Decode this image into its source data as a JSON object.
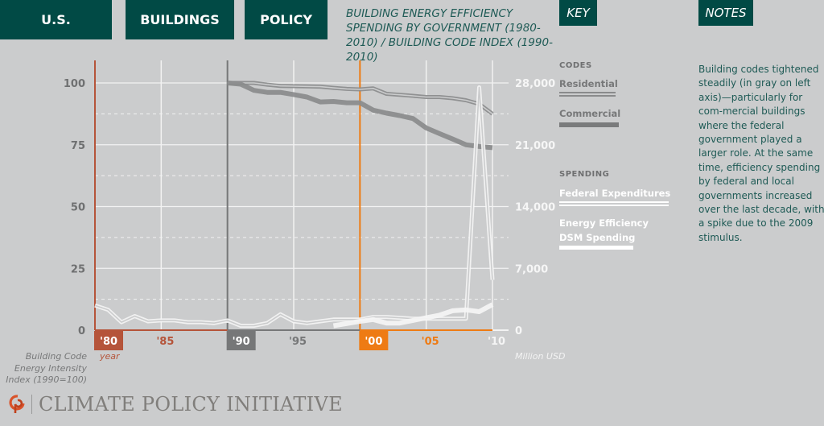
{
  "tabs": {
    "us": "U.S.",
    "buildings": "BUILDINGS",
    "policy": "POLICY",
    "key": "KEY",
    "notes": "NOTES"
  },
  "colors": {
    "tab_bg": "#014a45",
    "background": "#cbcccd",
    "decade_1980": "#b5543a",
    "decade_1990": "#767778",
    "decade_2000": "#ee7b14",
    "codes_gray": "#8a8b8c",
    "spending_white": "#f5f5f5"
  },
  "legend": {
    "codes_heading": "CODES",
    "residential": "Residential",
    "commercial": "Commercial",
    "spending_heading": "SPENDING",
    "federal": "Federal Expenditures",
    "dsm_line1": "Energy Efficiency",
    "dsm_line2": "DSM Spending"
  },
  "notes_text": "Building codes tightened steadily (in gray on left axis)—particularly for com-mercial buildings where the federal government played a larger role. At the same time, efficiency spending by federal and local governments increased over the last decade, with a spike due to the 2009 stimulus.",
  "axis_captions": {
    "left_line1": "Building Code",
    "left_line2": "Energy Intensity",
    "left_line3": "Index (1990=100)",
    "x": "year",
    "right": "Million USD"
  },
  "logo_text": "CLIMATE POLICY INITIATIVE",
  "chart_data": {
    "type": "line",
    "title": "BUILDING ENERGY EFFICIENCY SPENDING BY GOVERNMENT (1980-2010) / BUILDING CODE INDEX (1990-2010)",
    "xlabel": "year",
    "ylabel": "Building Code Energy Intensity Index (1990=100)",
    "y2label": "Million USD",
    "xlim": [
      1980,
      2010
    ],
    "ylim": [
      0,
      100
    ],
    "y2lim": [
      0,
      28000
    ],
    "x_ticks": [
      {
        "value": 1980,
        "label": "'80",
        "highlight": "decade_1980"
      },
      {
        "value": 1985,
        "label": "'85",
        "color": "decade_1980"
      },
      {
        "value": 1990,
        "label": "'90",
        "highlight": "decade_1990"
      },
      {
        "value": 1995,
        "label": "'95",
        "color": "decade_1990"
      },
      {
        "value": 2000,
        "label": "'00",
        "highlight": "decade_2000"
      },
      {
        "value": 2005,
        "label": "'05",
        "color": "decade_2000"
      },
      {
        "value": 2010,
        "label": "'10",
        "color": "spending_white"
      }
    ],
    "y_ticks": [
      0,
      25,
      50,
      75,
      100
    ],
    "y2_ticks": [
      {
        "value": 0,
        "label": "0"
      },
      {
        "value": 7000,
        "label": "7,000"
      },
      {
        "value": 14000,
        "label": "14,000"
      },
      {
        "value": 21000,
        "label": "21,000"
      },
      {
        "value": 28000,
        "label": "28,000"
      }
    ],
    "grid": true,
    "legend": "right",
    "series": [
      {
        "name": "Residential",
        "group": "CODES",
        "axis": "left",
        "style": "double",
        "color": "codes_gray",
        "x": [
          1990,
          1991,
          1992,
          1993,
          1994,
          1995,
          1996,
          1997,
          1998,
          1999,
          2000,
          2001,
          2002,
          2003,
          2004,
          2005,
          2006,
          2007,
          2008,
          2009,
          2010
        ],
        "values": [
          100,
          100,
          100,
          99.3,
          98.8,
          98.7,
          98.6,
          98.5,
          98,
          97.6,
          97.4,
          97.8,
          95.6,
          95.2,
          94.8,
          94.3,
          94.3,
          93.8,
          93,
          91.5,
          87.5
        ]
      },
      {
        "name": "Commercial",
        "group": "CODES",
        "axis": "left",
        "style": "thick",
        "color": "codes_gray",
        "x": [
          1990,
          1991,
          1992,
          1993,
          1994,
          1995,
          1996,
          1997,
          1998,
          1999,
          2000,
          2001,
          2002,
          2003,
          2004,
          2005,
          2006,
          2007,
          2008,
          2009,
          2010
        ],
        "values": [
          100,
          99.5,
          97,
          96.2,
          96.2,
          95.3,
          94.3,
          92.3,
          92.5,
          92,
          92,
          89,
          87.8,
          86.8,
          85.6,
          81.8,
          79.5,
          77.3,
          75,
          74.3,
          73.8
        ]
      },
      {
        "name": "Federal Expenditures",
        "group": "SPENDING",
        "axis": "right",
        "style": "double",
        "color": "spending_white",
        "x": [
          1980,
          1981,
          1982,
          1983,
          1984,
          1985,
          1986,
          1987,
          1988,
          1989,
          1990,
          1991,
          1992,
          1993,
          1994,
          1995,
          1996,
          1997,
          1998,
          1999,
          2000,
          2001,
          2002,
          2003,
          2004,
          2005,
          2006,
          2007,
          2008,
          2009,
          2010
        ],
        "values": [
          2800,
          2300,
          900,
          1600,
          1000,
          1100,
          1100,
          900,
          900,
          800,
          1100,
          500,
          500,
          800,
          1800,
          1000,
          800,
          1000,
          1200,
          1200,
          1200,
          1500,
          1500,
          1400,
          1300,
          1300,
          1300,
          1300,
          1300,
          27500,
          5700
        ]
      },
      {
        "name": "Energy Efficiency DSM Spending",
        "group": "SPENDING",
        "axis": "right",
        "style": "thick",
        "color": "spending_white",
        "x": [
          1998,
          1999,
          2000,
          2001,
          2002,
          2003,
          2004,
          2005,
          2006,
          2007,
          2008,
          2009,
          2010
        ],
        "values": [
          500,
          750,
          1000,
          1200,
          800,
          800,
          1100,
          1400,
          1700,
          2200,
          2300,
          2100,
          2900
        ]
      }
    ]
  }
}
